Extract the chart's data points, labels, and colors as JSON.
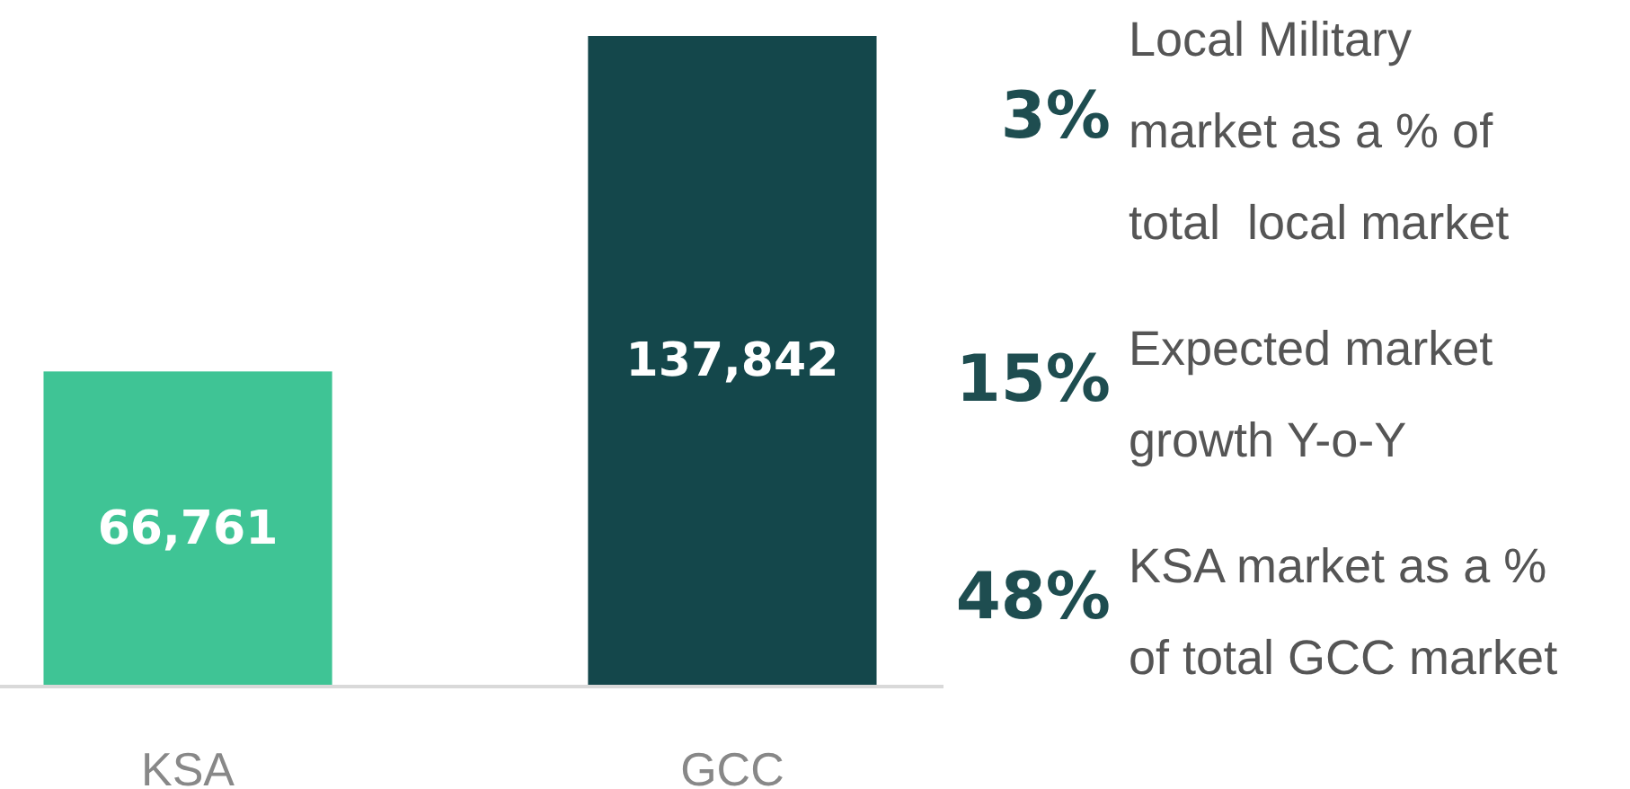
{
  "chart_data": {
    "type": "bar",
    "categories": [
      "KSA",
      "GCC"
    ],
    "values": [
      66761,
      137842
    ],
    "colors": [
      "#3fc495",
      "#14474b"
    ],
    "value_labels": [
      "66,761",
      "137,842"
    ],
    "annotations": [
      "3%",
      "Local Military\nmarket as a % of\ntotal  local market",
      "15%",
      "Expected market\ngrowth Y-o-Y",
      "48%",
      "KSA market as a %\nof total GCC market"
    ]
  }
}
